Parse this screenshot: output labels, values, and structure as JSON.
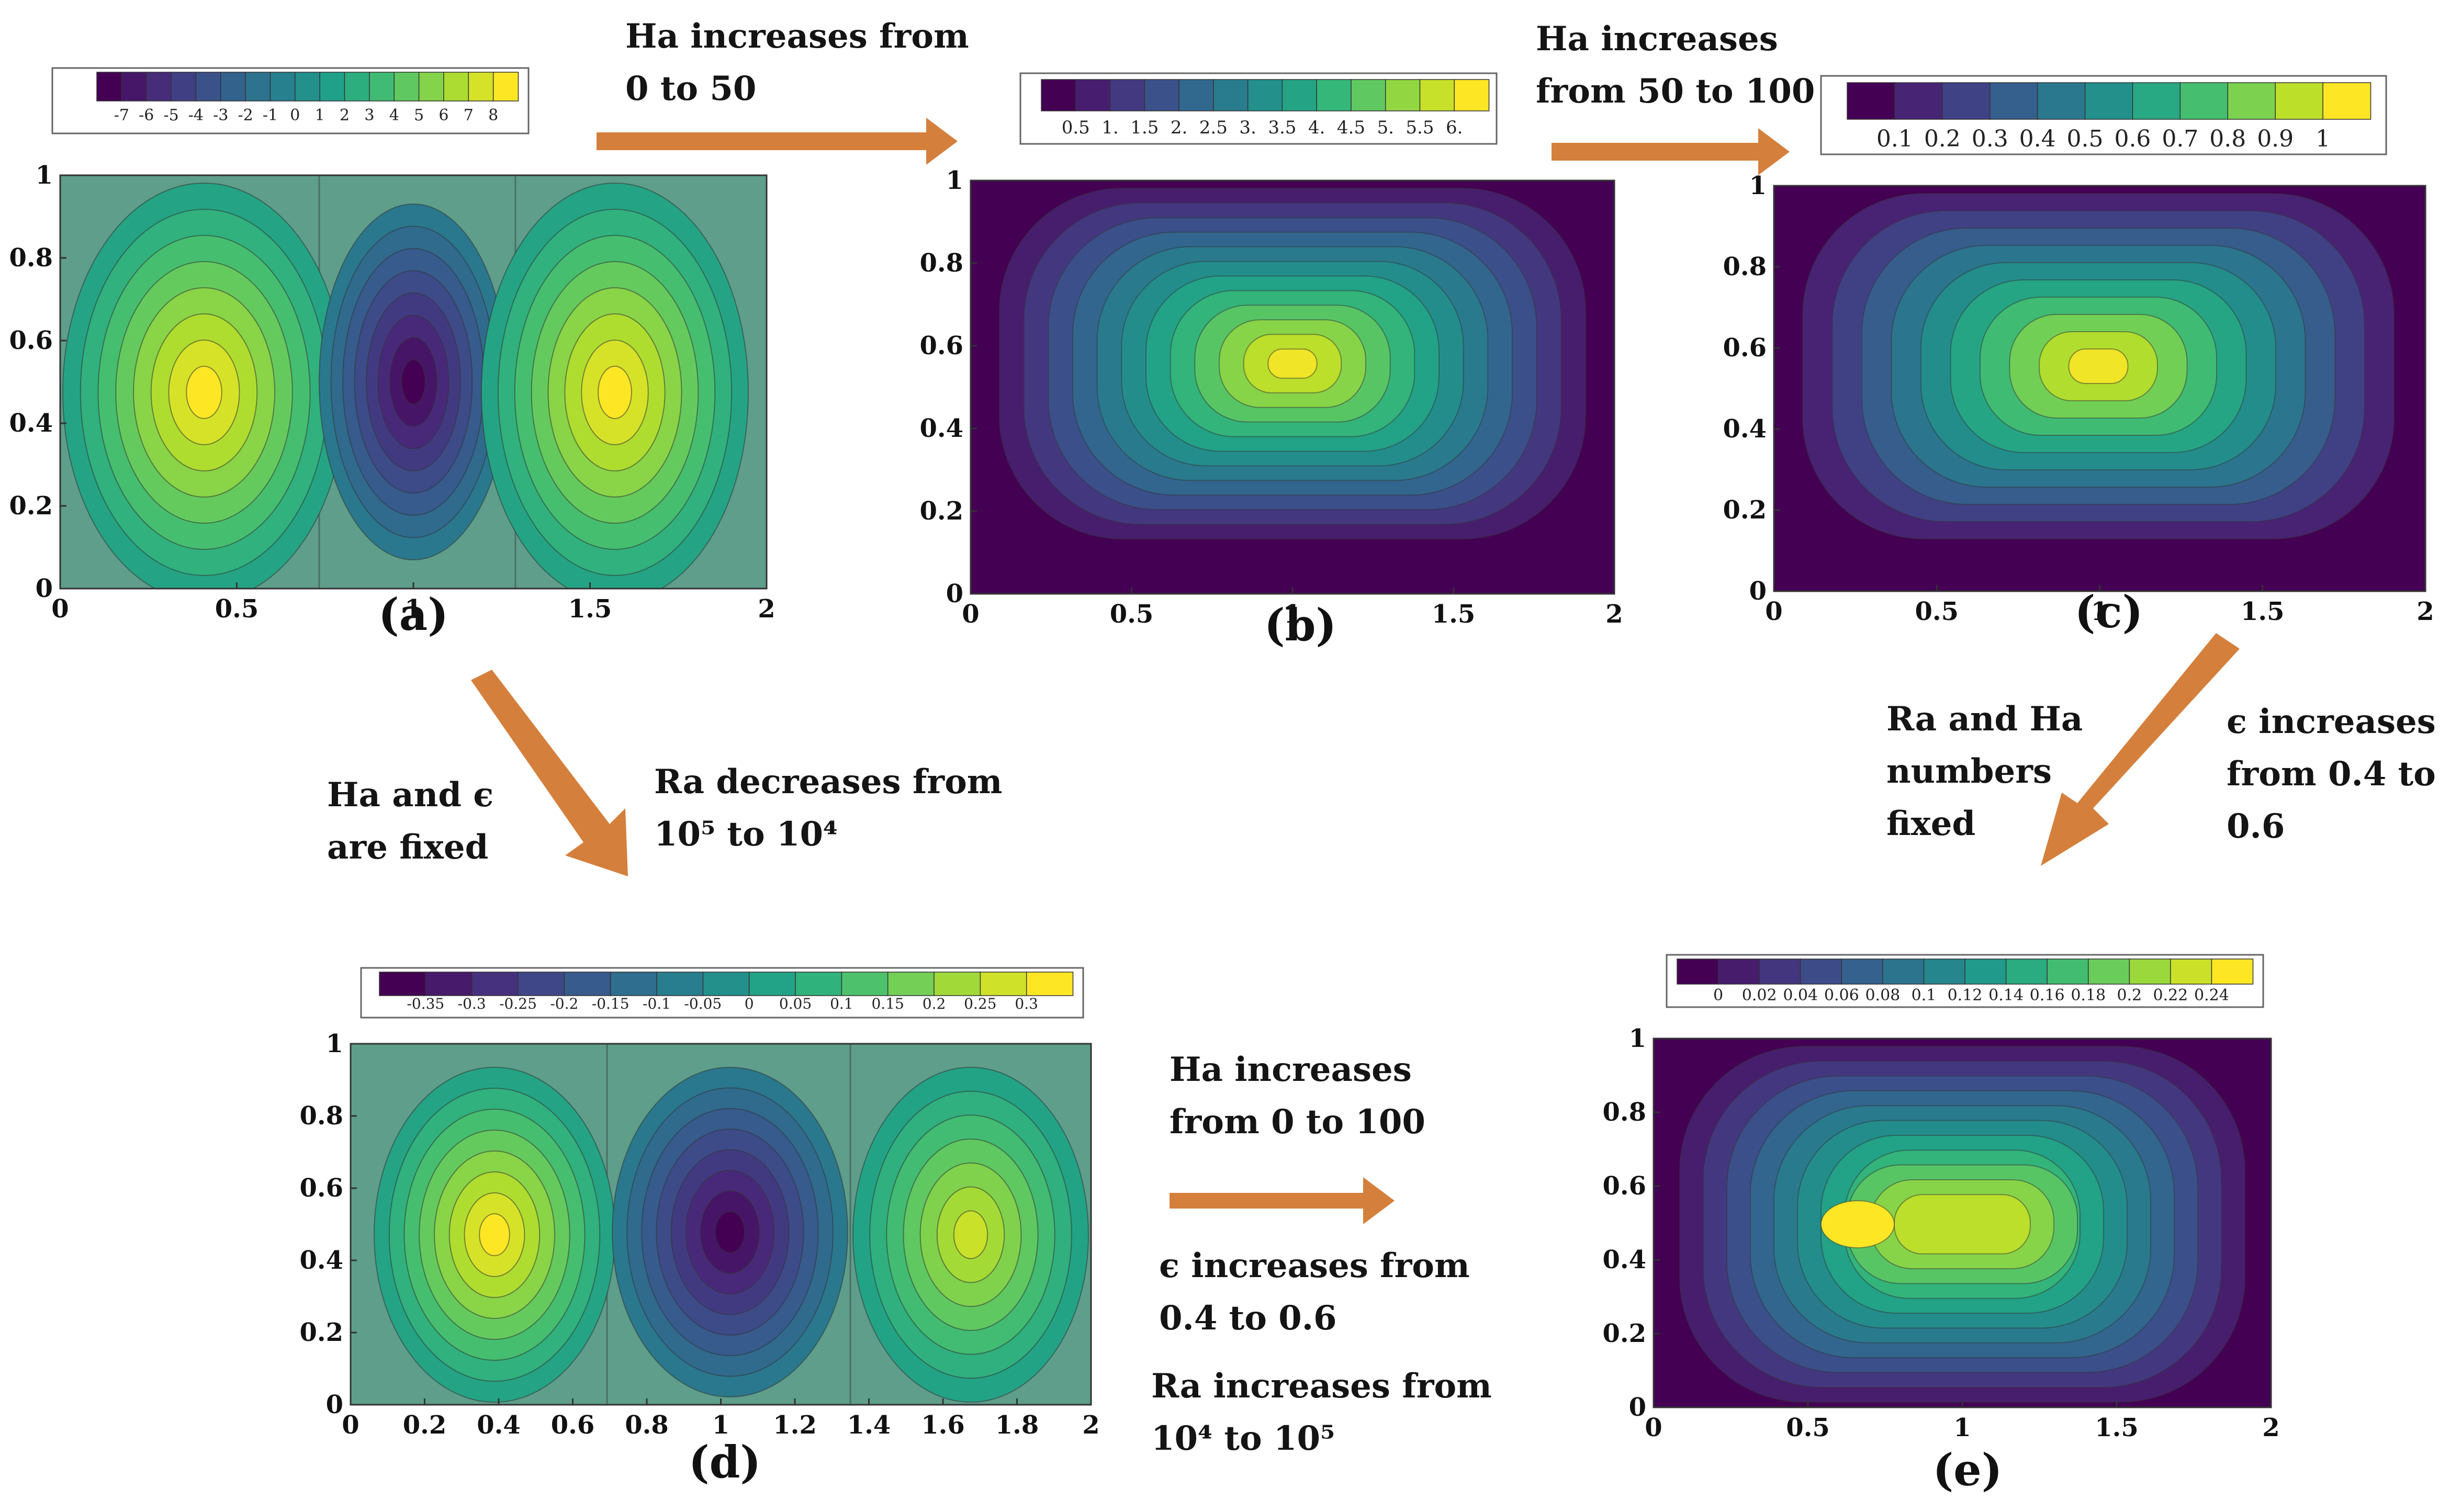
{
  "figure": {
    "panels": [
      {
        "id": "a",
        "label": "(a)",
        "xticks": [
          "0",
          "0.5",
          "1",
          "1.5",
          "2"
        ],
        "yticks": [
          "0",
          "0.2",
          "0.4",
          "0.6",
          "0.8",
          "1"
        ],
        "colorbar": {
          "ticks": [
            "-7",
            "-6",
            "-5",
            "-4",
            "-3",
            "-2",
            "-1",
            "0",
            "1",
            "2",
            "3",
            "4",
            "5",
            "6",
            "7",
            "8"
          ]
        }
      },
      {
        "id": "b",
        "label": "(b)",
        "xticks": [
          "0",
          "0.5",
          "1",
          "1.5",
          "2"
        ],
        "yticks": [
          "0",
          "0.2",
          "0.4",
          "0.6",
          "0.8",
          "1"
        ],
        "colorbar": {
          "ticks": [
            "0.5",
            "1.",
            "1.5",
            "2.",
            "2.5",
            "3.",
            "3.5",
            "4.",
            "4.5",
            "5.",
            "5.5",
            "6."
          ]
        }
      },
      {
        "id": "c",
        "label": "(c)",
        "xticks": [
          "0",
          "0.5",
          "1",
          "1.5",
          "2"
        ],
        "yticks": [
          "0",
          "0.2",
          "0.4",
          "0.6",
          "0.8",
          "1"
        ],
        "colorbar": {
          "ticks": [
            "0.1",
            "0.2",
            "0.3",
            "0.4",
            "0.5",
            "0.6",
            "0.7",
            "0.8",
            "0.9",
            "1"
          ]
        }
      },
      {
        "id": "d",
        "label": "(d)",
        "xticks": [
          "0",
          "0.2",
          "0.4",
          "0.6",
          "0.8",
          "1",
          "1.2",
          "1.4",
          "1.6",
          "1.8",
          "2"
        ],
        "yticks": [
          "0",
          "0.2",
          "0.4",
          "0.6",
          "0.8",
          "1"
        ],
        "colorbar": {
          "ticks": [
            "-0.35",
            "-0.3",
            "-0.25",
            "-0.2",
            "-0.15",
            "-0.1",
            "-0.05",
            "0",
            "0.05",
            "0.1",
            "0.15",
            "0.2",
            "0.25",
            "0.3"
          ]
        }
      },
      {
        "id": "e",
        "label": "(e)",
        "xticks": [
          "0",
          "0.5",
          "1",
          "1.5",
          "2"
        ],
        "yticks": [
          "0",
          "0.2",
          "0.4",
          "0.6",
          "0.8",
          "1"
        ],
        "colorbar": {
          "ticks": [
            "0",
            "0.02",
            "0.04",
            "0.06",
            "0.08",
            "0.1",
            "0.12",
            "0.14",
            "0.16",
            "0.18",
            "0.2",
            "0.22",
            "0.24"
          ]
        }
      }
    ],
    "annotations": {
      "a_to_b": [
        "Ha increases from",
        "0 to 50"
      ],
      "b_to_c": [
        "Ha    increases",
        "from 50 to 100"
      ],
      "a_to_d_left": [
        "Ha   and   ϵ",
        "are fixed"
      ],
      "a_to_d_right": [
        "Ra decreases from",
        "10⁵ to 10⁴"
      ],
      "c_to_e_left": [
        "Ra  and  Ha",
        "numbers",
        "fixed"
      ],
      "c_to_e_right": [
        "ϵ increases",
        "from 0.4 to",
        "0.6"
      ],
      "d_to_e_top": [
        "Ha   increases",
        "from 0 to 100"
      ],
      "d_to_e_mid": [
        "ϵ increases from",
        "0.4 to 0.6"
      ],
      "d_to_e_bottom": [
        "Ra  increases  from",
        "10⁴ to 10⁵"
      ]
    },
    "colors": {
      "arrow": "#D4803C",
      "axis": "#222222"
    }
  }
}
